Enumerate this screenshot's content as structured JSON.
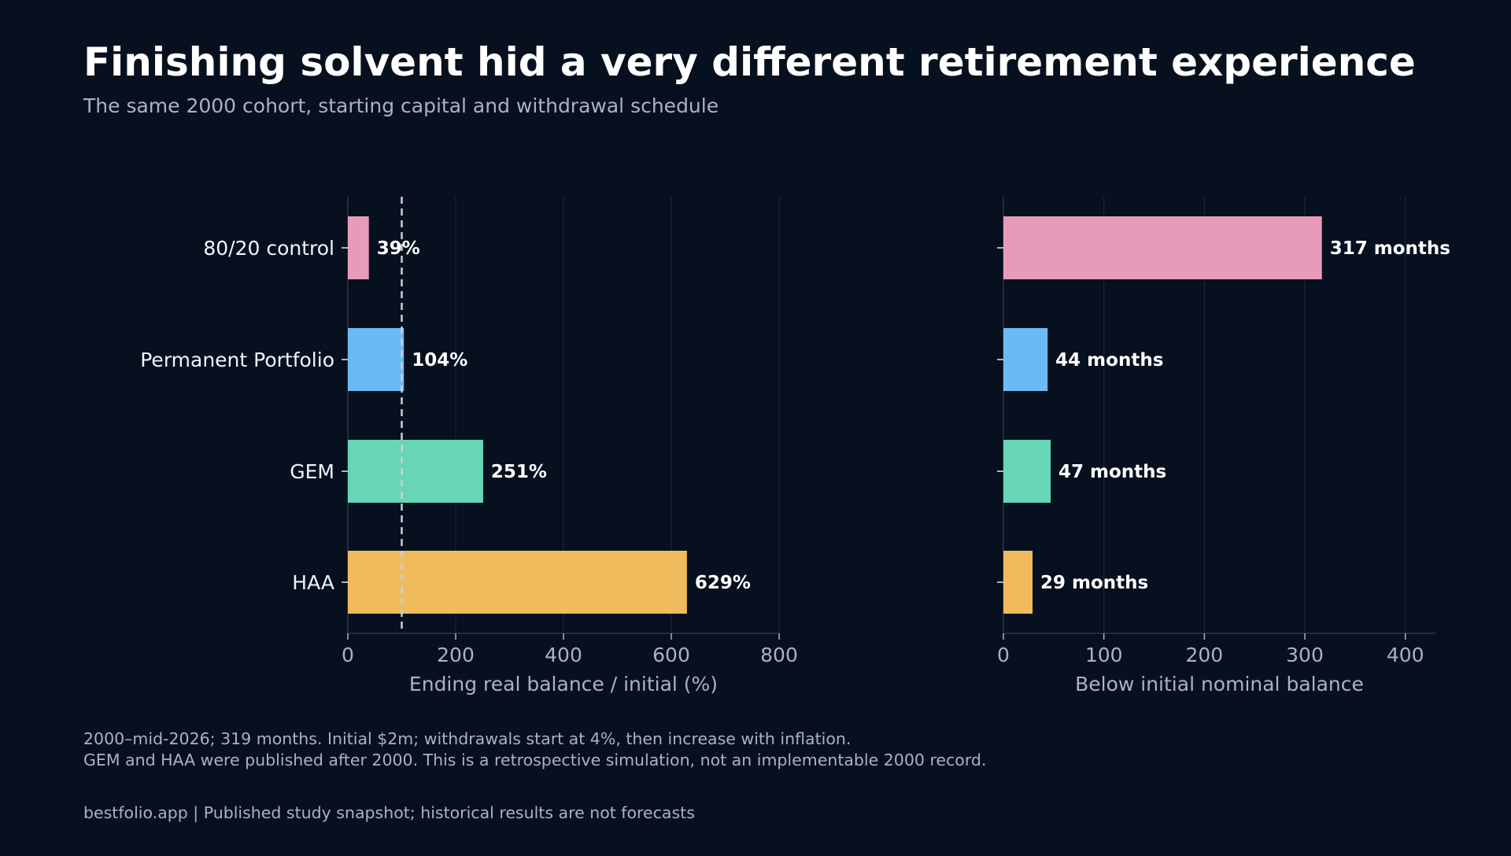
{
  "header": {
    "title": "Finishing solvent hid a very different retirement experience",
    "subtitle": "The same 2000 cohort, starting capital and withdrawal schedule"
  },
  "chart_data": [
    {
      "type": "bar",
      "orientation": "horizontal",
      "categories": [
        "80/20 control",
        "Permanent Portfolio",
        "GEM",
        "HAA"
      ],
      "values": [
        39,
        104,
        251,
        629
      ],
      "data_labels": [
        "39%",
        "104%",
        "251%",
        "629%"
      ],
      "colors": [
        "#e89bb8",
        "#6cbaf5",
        "#66d6b6",
        "#f0bb5a"
      ],
      "xlabel": "Ending real balance / initial (%)",
      "xlim": [
        0,
        800
      ],
      "xticks": [
        0,
        200,
        400,
        600,
        800
      ],
      "reference_line": {
        "x": 100,
        "style": "dashed"
      },
      "grid": "vertical"
    },
    {
      "type": "bar",
      "orientation": "horizontal",
      "categories": [
        "80/20 control",
        "Permanent Portfolio",
        "GEM",
        "HAA"
      ],
      "values": [
        317,
        44,
        47,
        29
      ],
      "data_labels": [
        "317 months",
        "44 months",
        "47 months",
        "29 months"
      ],
      "colors": [
        "#e89bb8",
        "#6cbaf5",
        "#66d6b6",
        "#f0bb5a"
      ],
      "xlabel": "Below initial nominal balance",
      "xlim": [
        0,
        430
      ],
      "xticks": [
        0,
        100,
        200,
        300,
        400
      ],
      "grid": "vertical"
    }
  ],
  "notes": {
    "line1": "2000–mid-2026; 319 months. Initial $2m; withdrawals start at 4%, then increase with inflation.",
    "line2": "GEM and HAA were published after 2000. This is a retrospective simulation, not an implementable 2000 record."
  },
  "footer": {
    "text": "bestfolio.app  |  Published study snapshot; historical results are not forecasts"
  }
}
